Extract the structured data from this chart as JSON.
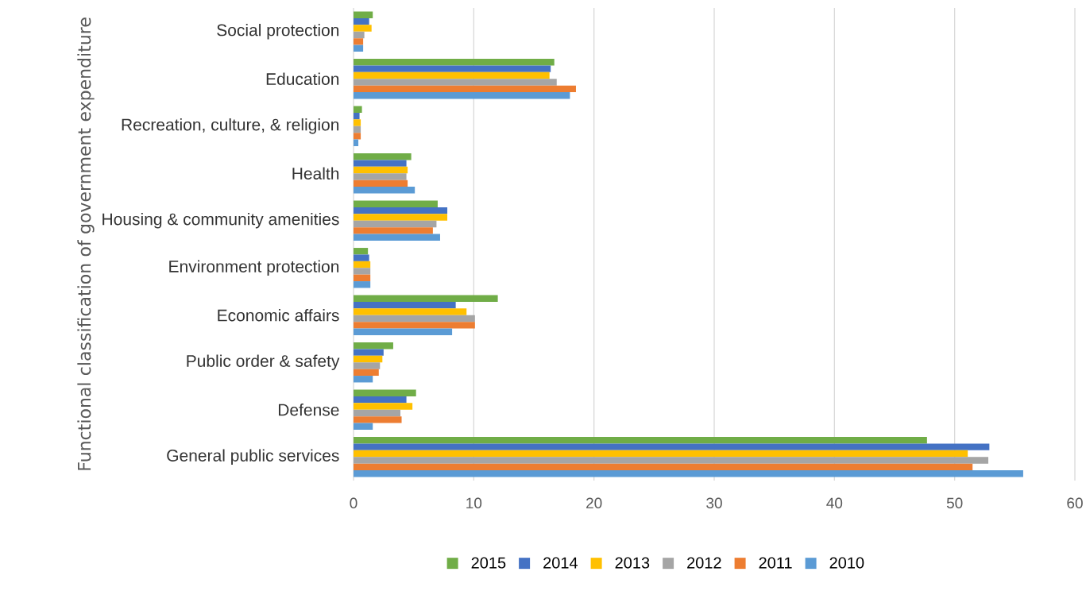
{
  "chart_data": {
    "type": "bar",
    "orientation": "horizontal",
    "ylabel": "Functional classification of government expenditure",
    "categories": [
      "Social protection",
      "Education",
      "Recreation, culture, & religion",
      "Health",
      "Housing & community amenities",
      "Environment protection",
      "Economic affairs",
      "Public order & safety",
      "Defense",
      "General public services"
    ],
    "series": [
      {
        "name": "2015",
        "color": "#70ad47",
        "values": [
          1.6,
          16.7,
          0.7,
          4.8,
          7.0,
          1.2,
          12.0,
          3.3,
          5.2,
          47.7
        ]
      },
      {
        "name": "2014",
        "color": "#4472c4",
        "values": [
          1.3,
          16.4,
          0.5,
          4.4,
          7.8,
          1.3,
          8.5,
          2.5,
          4.4,
          52.9
        ]
      },
      {
        "name": "2013",
        "color": "#ffc000",
        "values": [
          1.5,
          16.3,
          0.6,
          4.5,
          7.8,
          1.4,
          9.4,
          2.4,
          4.9,
          51.1
        ]
      },
      {
        "name": "2012",
        "color": "#a5a5a5",
        "values": [
          0.9,
          16.9,
          0.6,
          4.4,
          6.9,
          1.4,
          10.1,
          2.2,
          3.9,
          52.8
        ]
      },
      {
        "name": "2011",
        "color": "#ed7d31",
        "values": [
          0.8,
          18.5,
          0.6,
          4.5,
          6.6,
          1.4,
          10.1,
          2.1,
          4.0,
          51.5
        ]
      },
      {
        "name": "2010",
        "color": "#5b9bd5",
        "values": [
          0.8,
          18.0,
          0.4,
          5.1,
          7.2,
          1.4,
          8.2,
          1.6,
          1.6,
          55.7
        ]
      }
    ],
    "xlim": [
      0,
      60
    ],
    "xticks": [
      0,
      10,
      20,
      30,
      40,
      50,
      60
    ],
    "grid": "x",
    "legend": "bottom"
  }
}
